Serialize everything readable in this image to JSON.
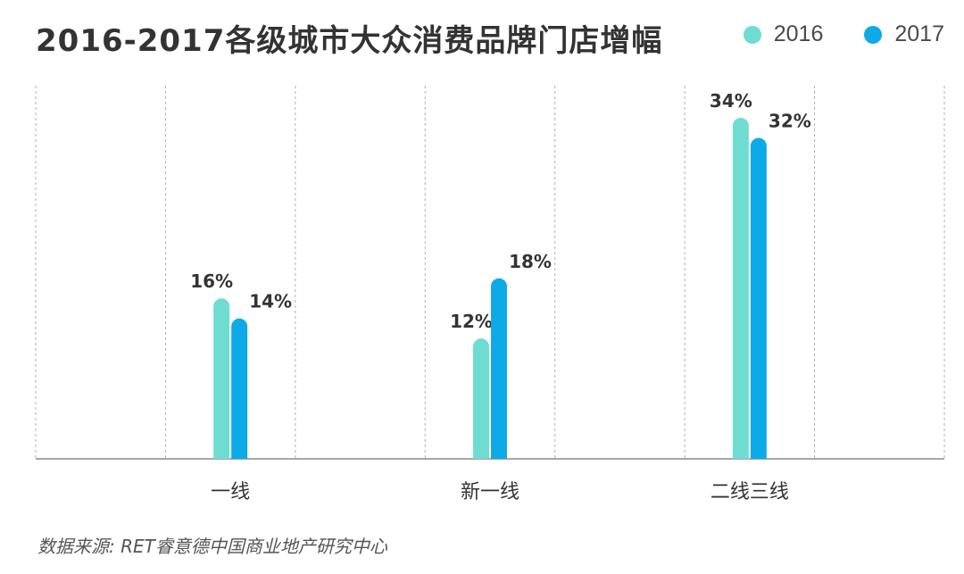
{
  "title": "2016-2017各级城市大众消费品牌门店增幅",
  "legend": [
    {
      "name": "2016",
      "color": "#6fdcd2"
    },
    {
      "name": "2017",
      "color": "#0eaae8"
    }
  ],
  "source": "数据来源: RET睿意德中国商业地产研究中心",
  "chart_data": {
    "type": "bar",
    "title": "2016-2017各级城市大众消费品牌门店增幅",
    "categories": [
      "一线",
      "新一线",
      "二线三线"
    ],
    "series": [
      {
        "name": "2016",
        "values": [
          16,
          12,
          34
        ],
        "labels": [
          "16%",
          "12%",
          "34%"
        ],
        "color": "#6fdcd2"
      },
      {
        "name": "2017",
        "values": [
          14,
          18,
          32
        ],
        "labels": [
          "14%",
          "18%",
          "32%"
        ],
        "color": "#0eaae8"
      }
    ],
    "unit": "%",
    "ylim": [
      0,
      37
    ],
    "grid": "vertical-dashed",
    "legend_position": "top-right"
  }
}
